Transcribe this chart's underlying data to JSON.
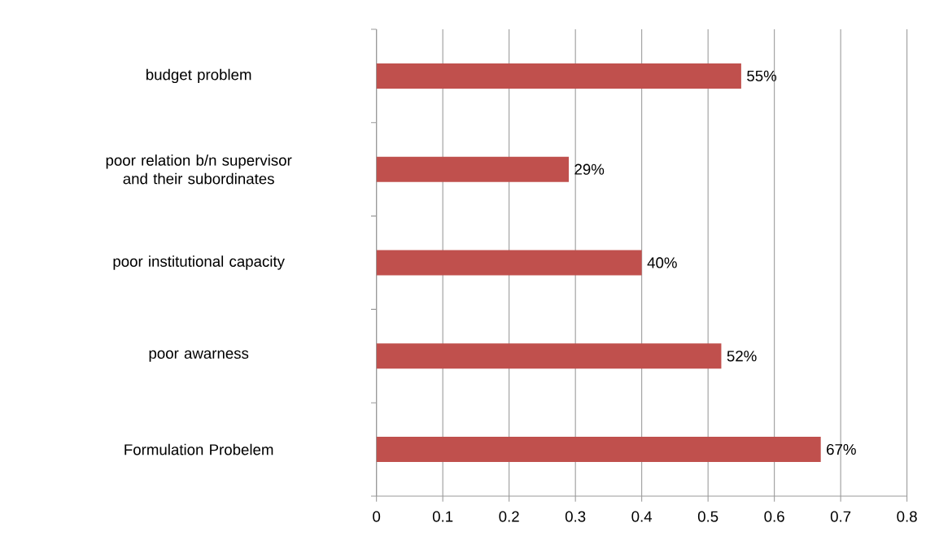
{
  "chart_data": {
    "type": "bar",
    "orientation": "horizontal",
    "categories": [
      "budget problem",
      "poor relation b/n supervisor and their subordinates",
      "poor institutional capacity",
      "poor awarness",
      "Formulation Probelem"
    ],
    "values": [
      0.55,
      0.29,
      0.4,
      0.52,
      0.67
    ],
    "value_labels": [
      "55%",
      "29%",
      "40%",
      "52%",
      "67%"
    ],
    "color": "#c0504d",
    "xlim": [
      0,
      0.8
    ],
    "xticks": [
      0,
      0.1,
      0.2,
      0.3,
      0.4,
      0.5,
      0.6,
      0.7,
      0.8
    ],
    "grid": "x"
  }
}
